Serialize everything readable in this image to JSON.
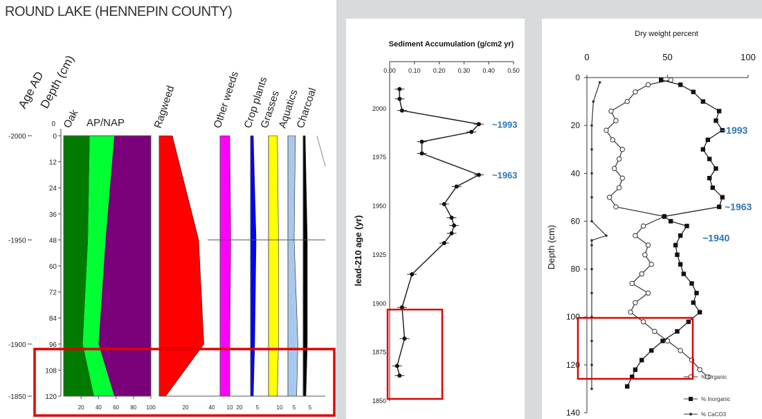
{
  "colors": {
    "oak": "#007a00",
    "ap": "#00ff33",
    "nap": "#7a007a",
    "ragweed": "#ff0000",
    "other_weeds": "#ff00ff",
    "crop": "#0000ff",
    "grasses": "#ffff00",
    "aquatics": "#a9c9ec",
    "charcoal": "#000000",
    "highlight": "#e00000",
    "annotation": "#2e75b6"
  },
  "chart_data": [
    {
      "type": "area",
      "title": "ROUND LAKE (HENNEPIN COUNTY)",
      "y_axes": {
        "age_label": "Age AD",
        "age_ticks": [
          "-2000",
          "-1950",
          "-1900",
          "-1850"
        ],
        "age_tick_depths": [
          0,
          48,
          96,
          120
        ],
        "depth_label": "Depth (cm)",
        "depth_ticks": [
          "0",
          "12",
          "24",
          "36",
          "48",
          "60",
          "72",
          "84",
          "96",
          "108",
          "120"
        ],
        "ylim": [
          0,
          120
        ]
      },
      "group_label": "AP/NAP",
      "depth": [
        0,
        48,
        96,
        120
      ],
      "series": [
        {
          "name": "Oak",
          "key": "oak",
          "values": [
            30,
            28,
            22,
            35
          ]
        },
        {
          "name": "",
          "key": "ap",
          "values": [
            58,
            48,
            40,
            58
          ]
        },
        {
          "name": "",
          "key": "nap",
          "values": [
            100,
            100,
            100,
            100
          ]
        }
      ],
      "ap_ticks": [
        "20",
        "40",
        "60",
        "80",
        "100"
      ],
      "taxa": [
        {
          "name": "Ragweed",
          "key": "ragweed",
          "depth": [
            0,
            48,
            96,
            120
          ],
          "values": [
            10,
            30,
            34,
            5
          ],
          "ticks": [
            "20",
            "40"
          ],
          "xlim": [
            0,
            40
          ]
        },
        {
          "name": "Other weeds",
          "key": "other_weeds",
          "depth": [
            0,
            48,
            96,
            120
          ],
          "values": [
            10,
            11,
            10,
            10
          ],
          "ticks": [
            "10",
            "20"
          ],
          "xlim": [
            0,
            20
          ]
        },
        {
          "name": "Crop plants",
          "key": "crop",
          "depth": [
            0,
            48,
            96,
            120
          ],
          "values": [
            2,
            4,
            3,
            2
          ],
          "ticks": [
            "5"
          ],
          "xlim": [
            0,
            10
          ]
        },
        {
          "name": "Grasses",
          "key": "grasses",
          "depth": [
            0,
            48,
            96,
            120
          ],
          "values": [
            8,
            9,
            9,
            8
          ],
          "ticks": [
            "10"
          ],
          "xlim": [
            0,
            15
          ]
        },
        {
          "name": "Aquatics",
          "key": "aquatics",
          "depth": [
            0,
            48,
            96,
            120
          ],
          "values": [
            6,
            5,
            8,
            7
          ],
          "ticks": [
            "5"
          ],
          "xlim": [
            0,
            10
          ]
        },
        {
          "name": "Charcoal",
          "key": "charcoal",
          "depth": [
            0,
            48,
            96,
            120
          ],
          "values": [
            1.5,
            3,
            3,
            2
          ],
          "ticks": [
            "5"
          ],
          "xlim": [
            0,
            10
          ]
        }
      ]
    },
    {
      "type": "line",
      "title": "Sediment Accumulation (g/cm2 yr)",
      "ylabel": "lead-210 age (yr)",
      "x_ticks": [
        "0.00",
        "0.10",
        "0.20",
        "0.30",
        "0.40",
        "0.50"
      ],
      "xlim": [
        0,
        0.5
      ],
      "y_ticks": [
        "2000",
        "1975",
        "1950",
        "1925",
        "1900",
        "1875",
        "1850"
      ],
      "ylim": [
        1850,
        2012
      ],
      "points": [
        {
          "x": 0.04,
          "y": 2010
        },
        {
          "x": 0.04,
          "y": 2005
        },
        {
          "x": 0.05,
          "y": 1999
        },
        {
          "x": 0.36,
          "y": 1992
        },
        {
          "x": 0.33,
          "y": 1988
        },
        {
          "x": 0.13,
          "y": 1983
        },
        {
          "x": 0.13,
          "y": 1977
        },
        {
          "x": 0.36,
          "y": 1966
        },
        {
          "x": 0.27,
          "y": 1960
        },
        {
          "x": 0.22,
          "y": 1951
        },
        {
          "x": 0.25,
          "y": 1944
        },
        {
          "x": 0.26,
          "y": 1940
        },
        {
          "x": 0.25,
          "y": 1936
        },
        {
          "x": 0.22,
          "y": 1931
        },
        {
          "x": 0.09,
          "y": 1915
        },
        {
          "x": 0.05,
          "y": 1898
        },
        {
          "x": 0.06,
          "y": 1882
        },
        {
          "x": 0.03,
          "y": 1868
        },
        {
          "x": 0.04,
          "y": 1863
        }
      ],
      "annotations": [
        "~1993",
        "~1963"
      ],
      "annotation_y": [
        1992,
        1966
      ]
    },
    {
      "type": "line",
      "title": "Dry weight percent",
      "ylabel": "Depth (cm)",
      "x_ticks": [
        "0",
        "50",
        "100"
      ],
      "xlim": [
        0,
        100
      ],
      "y_ticks": [
        "0",
        "20",
        "40",
        "60",
        "80",
        "100",
        "120",
        "140"
      ],
      "ylim": [
        0,
        140
      ],
      "series": [
        {
          "name": "% Organic",
          "depth": [
            1,
            3,
            6,
            10,
            14,
            18,
            22,
            26,
            30,
            34,
            38,
            42,
            46,
            50,
            54,
            58,
            62,
            66,
            70,
            74,
            78,
            82,
            86,
            90,
            94,
            98,
            102,
            106,
            110,
            114,
            118,
            122,
            125
          ],
          "values": [
            52,
            38,
            30,
            25,
            15,
            18,
            12,
            16,
            22,
            20,
            17,
            22,
            20,
            14,
            18,
            48,
            35,
            30,
            38,
            36,
            40,
            34,
            28,
            38,
            30,
            27,
            35,
            42,
            50,
            58,
            65,
            70,
            75
          ]
        },
        {
          "name": "% Inorganic",
          "depth": [
            1,
            3,
            6,
            10,
            14,
            18,
            22,
            26,
            30,
            34,
            38,
            42,
            46,
            50,
            54,
            58,
            60,
            62,
            66,
            70,
            74,
            78,
            82,
            86,
            90,
            94,
            98,
            102,
            106,
            110,
            114,
            118,
            122,
            125,
            129
          ],
          "values": [
            46,
            58,
            66,
            72,
            82,
            80,
            84,
            75,
            72,
            76,
            80,
            76,
            78,
            84,
            82,
            48,
            52,
            62,
            58,
            55,
            56,
            58,
            60,
            65,
            68,
            66,
            70,
            63,
            56,
            47,
            40,
            34,
            30,
            28,
            25
          ]
        },
        {
          "name": "% CaCO3",
          "depth": [
            2,
            10,
            20,
            30,
            40,
            50,
            60,
            66,
            68,
            70,
            80,
            90,
            100,
            110,
            120,
            130
          ],
          "values": [
            8,
            4,
            3,
            3,
            3,
            3,
            3,
            12,
            3,
            3,
            3,
            3,
            3,
            3,
            3,
            3
          ]
        }
      ],
      "annotations": [
        "~1993",
        "~1963",
        "~1940"
      ],
      "annotation_depth": [
        22,
        54,
        67
      ]
    }
  ]
}
